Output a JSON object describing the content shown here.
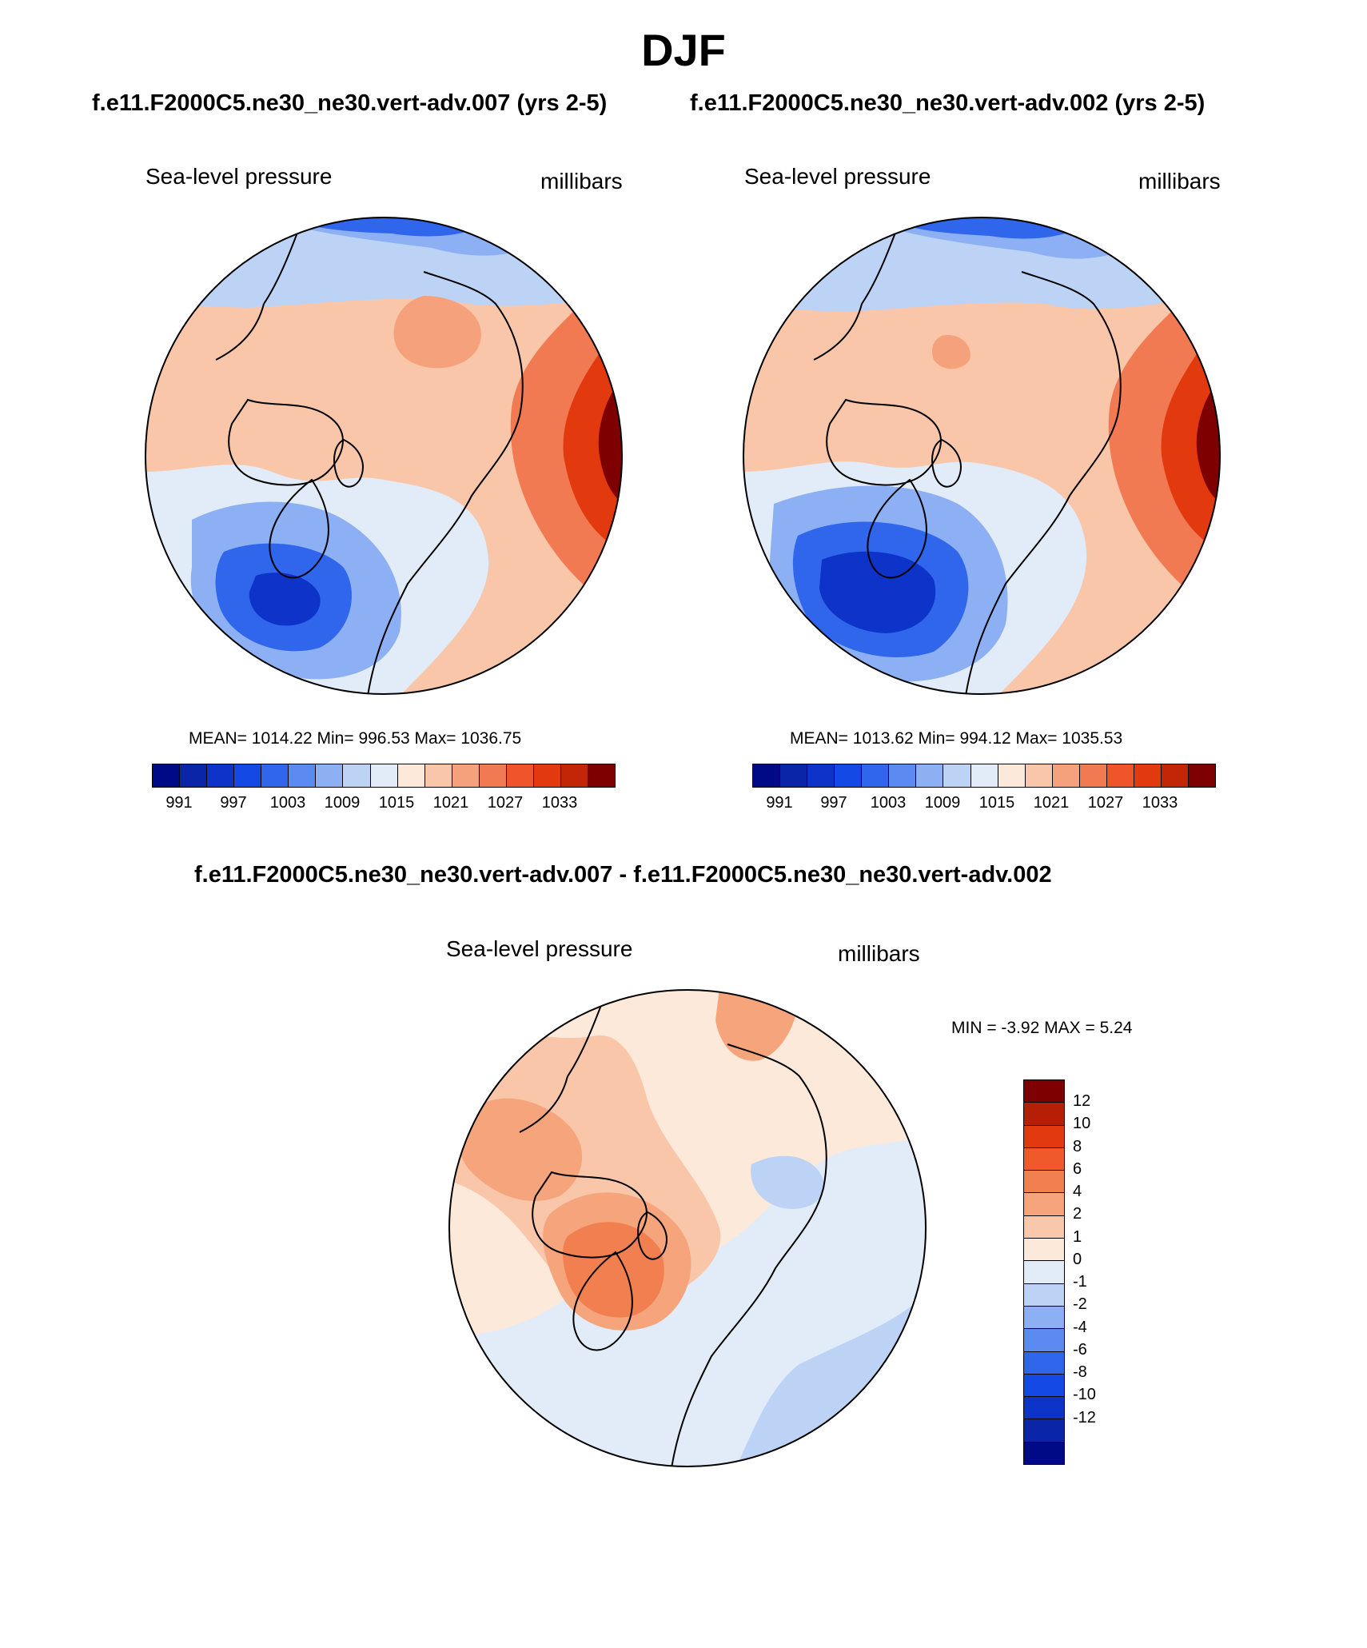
{
  "figure": {
    "title": "DJF",
    "case_a_subtitle": "f.e11.F2000C5.ne30_ne30.vert-adv.007 (yrs 2-5)",
    "case_b_subtitle": "f.e11.F2000C5.ne30_ne30.vert-adv.002 (yrs 2-5)",
    "diff_subtitle": "f.e11.F2000C5.ne30_ne30.vert-adv.007 - f.e11.F2000C5.ne30_ne30.vert-adv.002"
  },
  "panels": {
    "case_a": {
      "variable": "Sea-level pressure",
      "units": "millibars",
      "stats": "MEAN= 1014.22  Min= 996.53  Max= 1036.75"
    },
    "case_b": {
      "variable": "Sea-level pressure",
      "units": "millibars",
      "stats": "MEAN= 1013.62  Min= 994.12  Max= 1035.53"
    },
    "diff": {
      "variable": "Sea-level pressure",
      "units": "millibars",
      "stats": "MIN =  -3.92 MAX =   5.24"
    }
  },
  "colors": {
    "abs_scale": [
      "#000a87",
      "#0a25a8",
      "#0d33c9",
      "#1549e6",
      "#2f66ec",
      "#5b8af0",
      "#8cb0f3",
      "#bcd3f6",
      "#e1ecf8",
      "#fde9da",
      "#f9c6aa",
      "#f5a17c",
      "#f17a52",
      "#f0542a",
      "#e3390f",
      "#c22606",
      "#7f0000"
    ],
    "diff_scale": [
      "#7f0000",
      "#b51f05",
      "#e3390f",
      "#f05a2b",
      "#f27f4f",
      "#f5a47c",
      "#f9c8aa",
      "#fde9da",
      "#e1ecf8",
      "#bcd3f6",
      "#8cb0f3",
      "#5b8af0",
      "#2f66ec",
      "#1549e6",
      "#0d33c9",
      "#0a25a8",
      "#000a87"
    ]
  },
  "chart_data": [
    {
      "type": "heatmap",
      "panel": "case_a",
      "title": "Sea-level pressure",
      "units": "millibars",
      "projection": "north polar stereographic",
      "colorbar_ticks": [
        "991",
        "997",
        "1003",
        "1009",
        "1015",
        "1021",
        "1027",
        "1033"
      ],
      "mean": 1014.22,
      "min": 996.53,
      "max": 1036.75
    },
    {
      "type": "heatmap",
      "panel": "case_b",
      "title": "Sea-level pressure",
      "units": "millibars",
      "projection": "north polar stereographic",
      "colorbar_ticks": [
        "991",
        "997",
        "1003",
        "1009",
        "1015",
        "1021",
        "1027",
        "1033"
      ],
      "mean": 1013.62,
      "min": 994.12,
      "max": 1035.53
    },
    {
      "type": "heatmap",
      "panel": "diff",
      "title": "Sea-level pressure",
      "units": "millibars",
      "projection": "north polar stereographic",
      "colorbar_ticks": [
        "12",
        "10",
        "8",
        "6",
        "4",
        "2",
        "1",
        "0",
        "-1",
        "-2",
        "-4",
        "-6",
        "-8",
        "-10",
        "-12"
      ],
      "min": -3.92,
      "max": 5.24
    }
  ]
}
